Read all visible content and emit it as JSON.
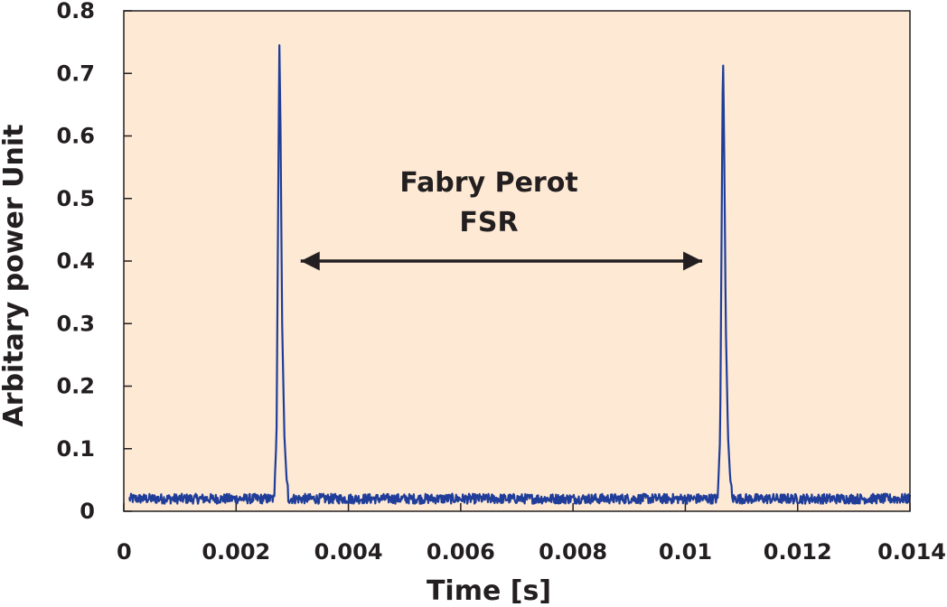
{
  "chart_data": {
    "type": "line",
    "title": "",
    "xlabel": "Time [s]",
    "ylabel": "Arbitary power Unit",
    "xlim": [
      0,
      0.014
    ],
    "ylim": [
      0,
      0.8
    ],
    "x_ticks": [
      0,
      0.002,
      0.004,
      0.006,
      0.008,
      0.01,
      0.012,
      0.014
    ],
    "x_tick_labels": [
      "0",
      "0.002",
      "0.004",
      "0.006",
      "0.008",
      "0.01",
      "0.012",
      "0.014"
    ],
    "y_ticks": [
      0,
      0.1,
      0.2,
      0.3,
      0.4,
      0.5,
      0.6,
      0.7,
      0.8
    ],
    "y_tick_labels": [
      "0",
      "0.1",
      "0.2",
      "0.3",
      "0.4",
      "0.5",
      "0.6",
      "0.7",
      "0.8"
    ],
    "grid": false,
    "legend": "none",
    "background_color": "#fde9d4",
    "series": [
      {
        "color": "#1f3d99",
        "baseline": 0.02,
        "noise_amplitude": 0.008,
        "x": [
          0.0001,
          0.0026,
          0.00268,
          0.00272,
          0.00275,
          0.00277,
          0.00279,
          0.00282,
          0.00286,
          0.0029,
          0.00296,
          0.003,
          0.0104,
          0.01058,
          0.01062,
          0.01065,
          0.01067,
          0.01069,
          0.01072,
          0.01076,
          0.0108,
          0.01086,
          0.0109,
          0.014
        ],
        "y": [
          0.02,
          0.02,
          0.03,
          0.12,
          0.5,
          0.75,
          0.62,
          0.3,
          0.12,
          0.05,
          0.025,
          0.02,
          0.02,
          0.03,
          0.12,
          0.5,
          0.74,
          0.6,
          0.3,
          0.12,
          0.05,
          0.025,
          0.02,
          0.02
        ]
      }
    ],
    "annotations": [
      {
        "type": "double-arrow",
        "x": [
          0.00315,
          0.0103
        ],
        "y": 0.4
      },
      {
        "type": "text",
        "lines": [
          "Fabry Perot",
          "FSR"
        ]
      }
    ]
  }
}
